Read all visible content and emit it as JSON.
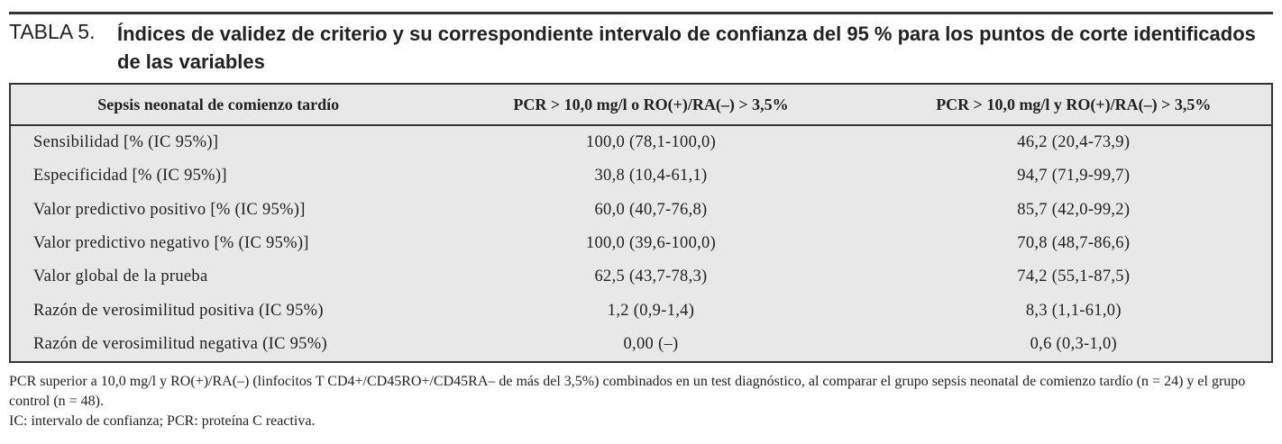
{
  "title": {
    "label": "TABLA 5.",
    "text": "Índices de validez de criterio y su correspondiente intervalo de confianza del 95 % para los puntos de corte identificados de las variables"
  },
  "table": {
    "columns": [
      "Sepsis neonatal de comienzo tardío",
      "PCR > 10,0 mg/l o RO(+)/RA(–) > 3,5%",
      "PCR > 10,0 mg/l y RO(+)/RA(–) > 3,5%"
    ],
    "rows": [
      [
        "Sensibilidad [% (IC 95%)]",
        "100,0 (78,1-100,0)",
        "46,2 (20,4-73,9)"
      ],
      [
        "Especificidad [% (IC 95%)]",
        "30,8 (10,4-61,1)",
        "94,7 (71,9-99,7)"
      ],
      [
        "Valor predictivo positivo [% (IC 95%)]",
        "60,0 (40,7-76,8)",
        "85,7 (42,0-99,2)"
      ],
      [
        "Valor predictivo negativo [% (IC 95%)]",
        "100,0 (39,6-100,0)",
        "70,8 (48,7-86,6)"
      ],
      [
        "Valor global de la prueba",
        "62,5 (43,7-78,3)",
        "74,2 (55,1-87,5)"
      ],
      [
        "Razón de verosimilitud positiva (IC 95%)",
        "1,2 (0,9-1,4)",
        "8,3 (1,1-61,0)"
      ],
      [
        "Razón de verosimilitud negativa (IC 95%)",
        "0,00 (–)",
        "0,6 (0,3-1,0)"
      ]
    ]
  },
  "footnotes": [
    "PCR superior a 10,0 mg/l y RO(+)/RA(–) (linfocitos T CD4+/CD45RO+/CD45RA– de más del 3,5%) combinados en un test diagnóstico, al comparar el grupo sepsis neonatal de comienzo tardío (n = 24) y el grupo control (n = 48).",
    "IC: intervalo de confianza; PCR: proteína C reactiva."
  ]
}
